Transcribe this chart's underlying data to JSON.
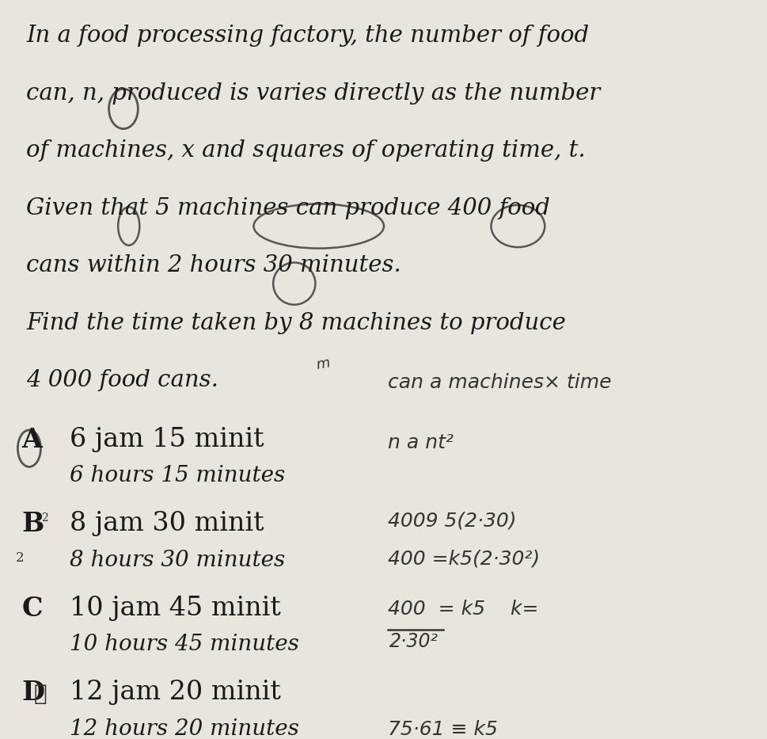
{
  "bg_color": "#e8e4de",
  "text_color": "#1a1a1a",
  "title_lines": [
    "In a food processing factory, the number of food",
    "can, n, produced is varies directly as the number",
    "of machines, x and squares of operating time, t.",
    "Given that 5 machines can produce 400 food",
    "cans within 2 hours 30 minutes.",
    "Find the time taken by 8 machines to produce",
    "4 000 food cans."
  ],
  "options": [
    {
      "label": "A",
      "line1": "6 jam 15 minit",
      "line2": "6 hours 15 minutes"
    },
    {
      "label": "B",
      "line1": "8 jam 30 minit",
      "line2": "8 hours 30 minutes"
    },
    {
      "label": "C",
      "line1": "10 jam 45 minit",
      "line2": "10 hours 45 minutes"
    },
    {
      "label": "D",
      "line1": "12 jam 20 minit",
      "line2": "12 hours 20 minutes"
    }
  ],
  "font_size_body": 21,
  "font_size_opt1": 24,
  "font_size_opt2": 20,
  "font_size_hw": 18
}
